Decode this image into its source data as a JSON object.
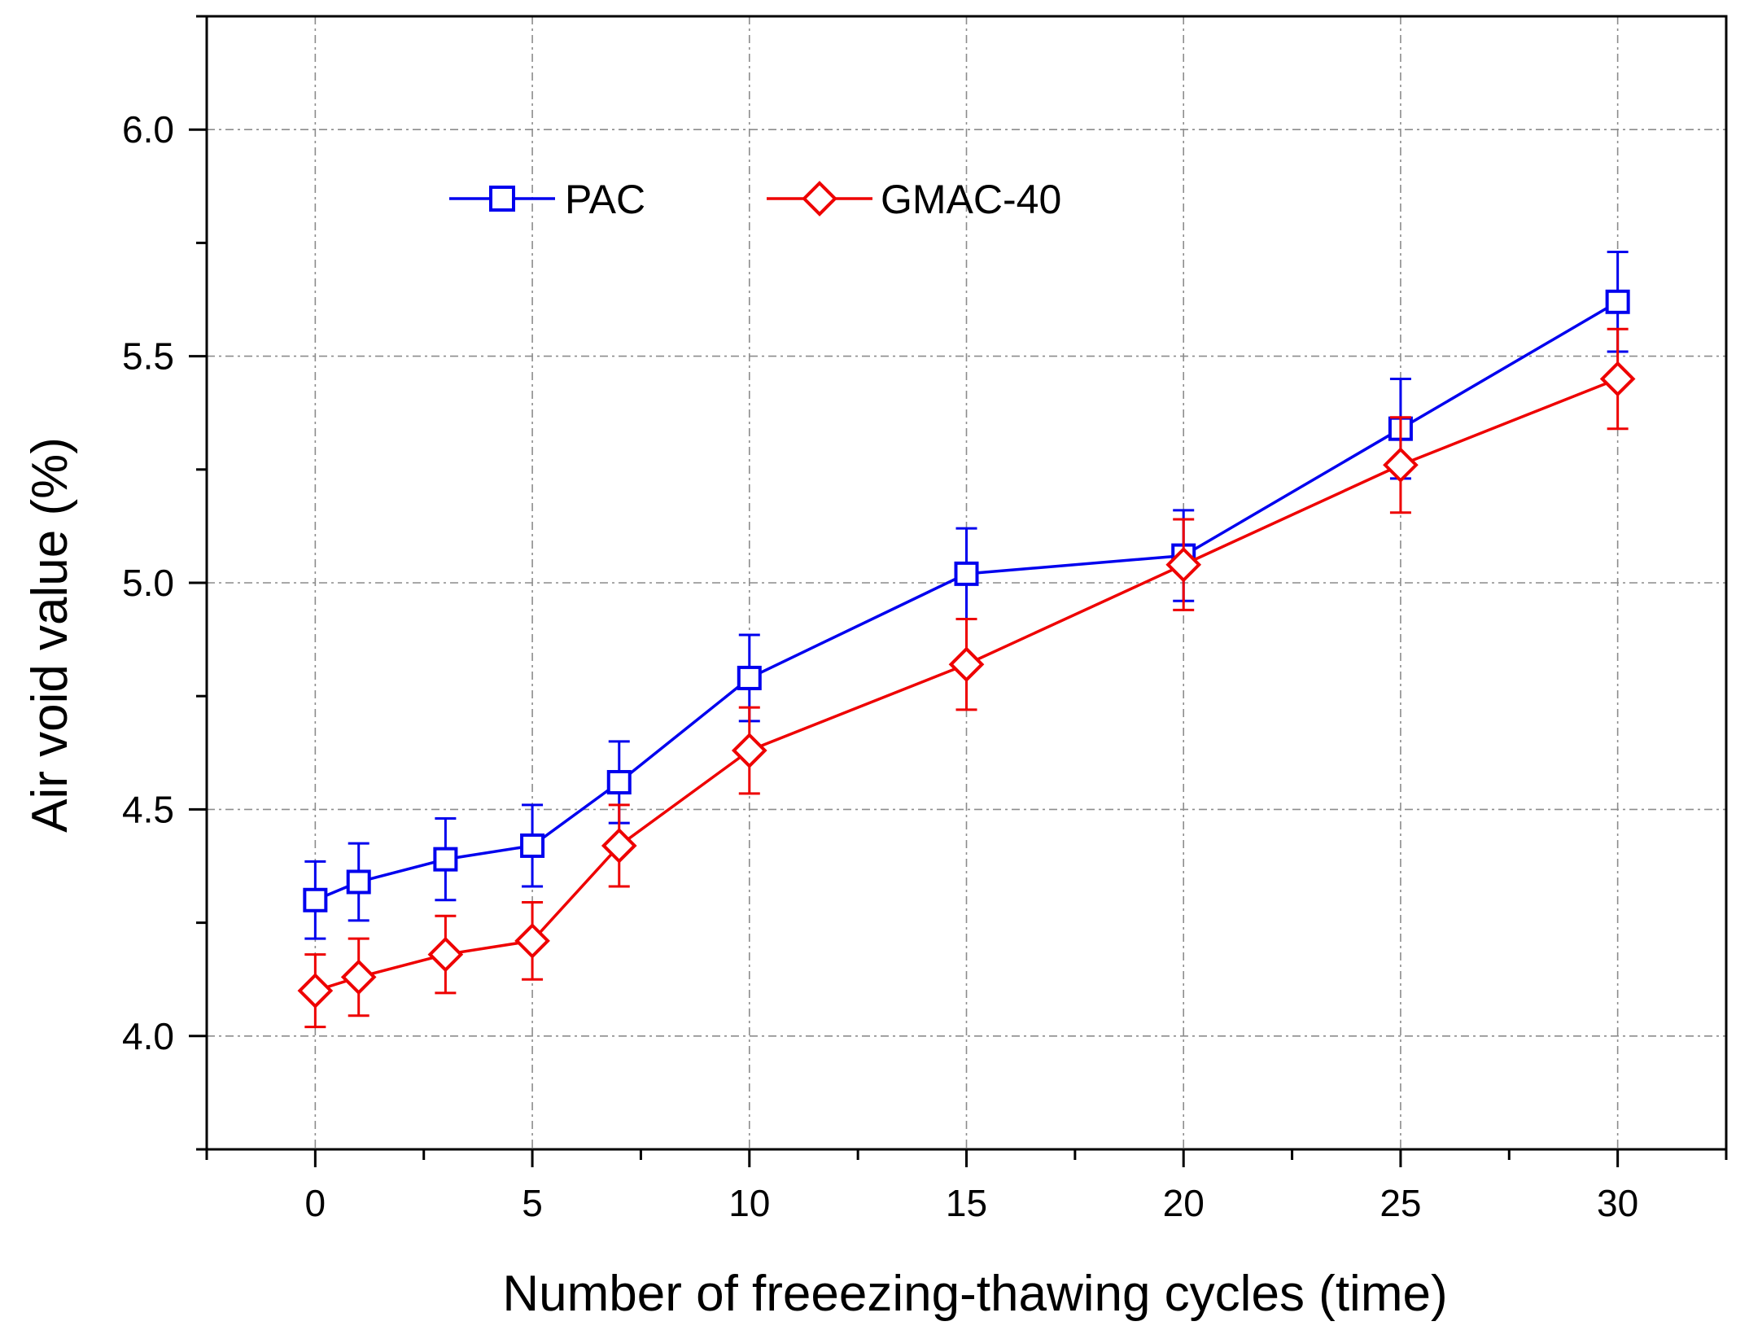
{
  "chart_data": {
    "type": "line",
    "title": "",
    "xlabel": "Number of freeezing-thawing cycles (time)",
    "ylabel": "Air void value (%)",
    "xlim": [
      -2.5,
      32.5
    ],
    "ylim": [
      3.75,
      6.25
    ],
    "xticks": [
      0,
      5,
      10,
      15,
      20,
      25,
      30
    ],
    "xtick_labels": [
      "0",
      "5",
      "10",
      "15",
      "20",
      "25",
      "30"
    ],
    "yticks": [
      4.0,
      4.5,
      5.0,
      5.5,
      6.0
    ],
    "ytick_labels": [
      "4.0",
      "4.5",
      "5.0",
      "5.5",
      "6.0"
    ],
    "grid": true,
    "legend_position": "top-left",
    "x": [
      0,
      1,
      3,
      5,
      7,
      10,
      15,
      20,
      25,
      30
    ],
    "series": [
      {
        "name": "PAC",
        "color": "#0000ee",
        "marker": "square",
        "values": [
          4.3,
          4.34,
          4.39,
          4.42,
          4.56,
          4.79,
          5.02,
          5.06,
          5.34,
          5.62
        ],
        "errors": [
          0.085,
          0.085,
          0.09,
          0.09,
          0.09,
          0.095,
          0.1,
          0.1,
          0.11,
          0.11
        ]
      },
      {
        "name": "GMAC-40",
        "color": "#ee0000",
        "marker": "diamond",
        "values": [
          4.1,
          4.13,
          4.18,
          4.21,
          4.42,
          4.63,
          4.82,
          5.04,
          5.26,
          5.45
        ],
        "errors": [
          0.08,
          0.085,
          0.085,
          0.085,
          0.09,
          0.095,
          0.1,
          0.1,
          0.105,
          0.11
        ]
      }
    ]
  }
}
